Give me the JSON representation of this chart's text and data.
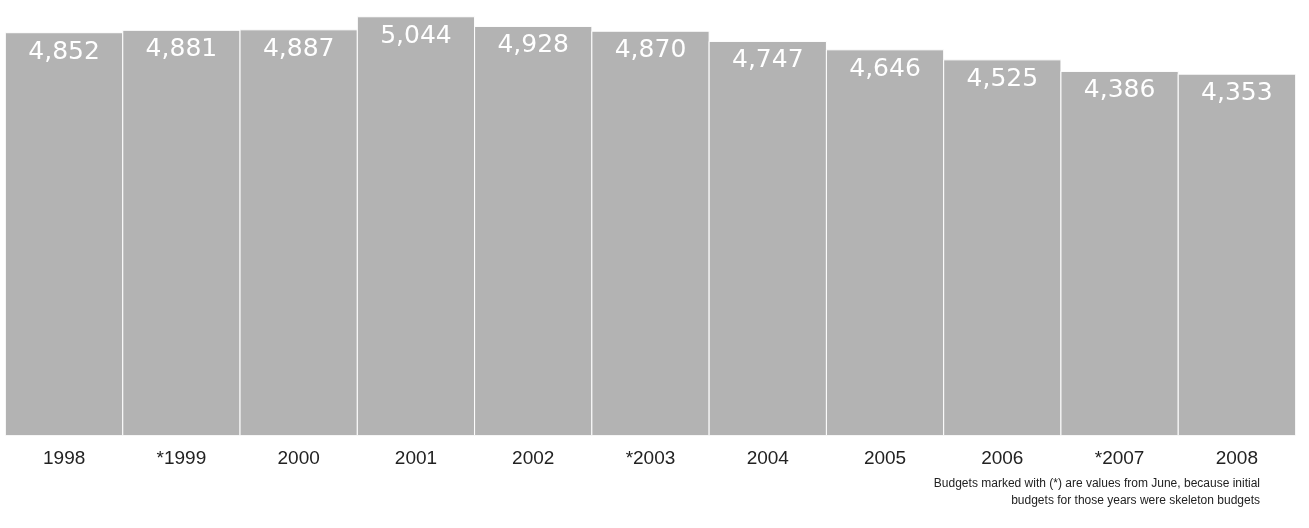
{
  "chart_data": {
    "type": "bar",
    "categories": [
      "1998",
      "*1999",
      "2000",
      "2001",
      "2002",
      "*2003",
      "2004",
      "2005",
      "2006",
      "*2007",
      "2008"
    ],
    "values": [
      4852,
      4881,
      4887,
      5044,
      4928,
      4870,
      4747,
      4646,
      4525,
      4386,
      4353
    ],
    "color": "#b3b3b3",
    "value_labels": [
      "4,852",
      "4,881",
      "4,887",
      "5,044",
      "4,928",
      "4,870",
      "4,747",
      "4,646",
      "4,525",
      "4,386",
      "4,353"
    ],
    "grid": false,
    "annotations": [
      "Budgets marked with (*) are values from June, because initial budgets for those years were skeleton budgets"
    ]
  }
}
